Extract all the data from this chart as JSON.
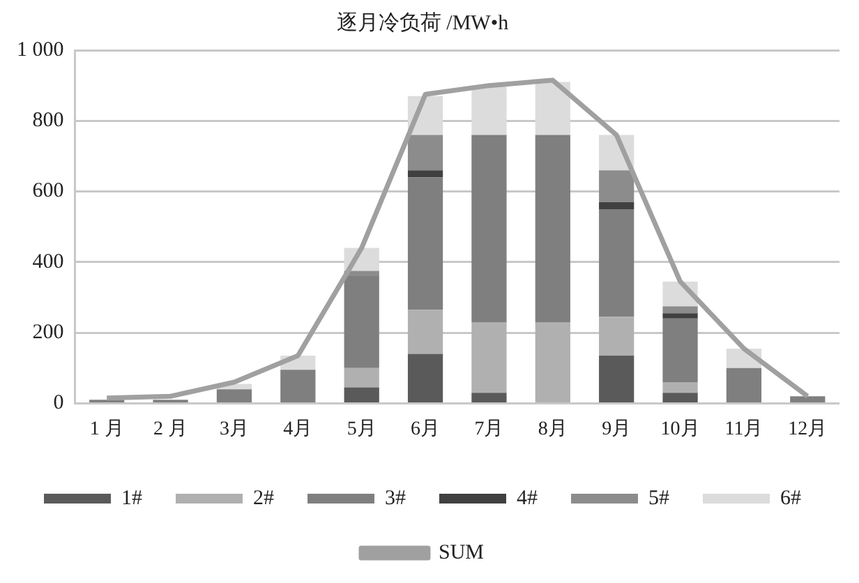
{
  "chart_data": {
    "type": "bar",
    "title": "逐月冷负荷 /MW•h",
    "stacked": true,
    "categories": [
      "1 月",
      "2 月",
      "3月",
      "4月",
      "5月",
      "6月",
      "7月",
      "8月",
      "9月",
      "10月",
      "11月",
      "12月"
    ],
    "series": [
      {
        "name": "1#",
        "color": "#5a5a5a",
        "values": [
          0,
          0,
          0,
          0,
          45,
          140,
          30,
          0,
          135,
          30,
          0,
          0
        ]
      },
      {
        "name": "2#",
        "color": "#b0b0b0",
        "values": [
          0,
          0,
          0,
          0,
          55,
          125,
          200,
          230,
          110,
          30,
          0,
          0
        ]
      },
      {
        "name": "3#",
        "color": "#7f7f7f",
        "values": [
          10,
          10,
          40,
          95,
          260,
          375,
          530,
          530,
          305,
          180,
          100,
          20
        ]
      },
      {
        "name": "4#",
        "color": "#404040",
        "values": [
          0,
          0,
          0,
          0,
          0,
          20,
          0,
          0,
          20,
          15,
          0,
          0
        ]
      },
      {
        "name": "5#",
        "color": "#8c8c8c",
        "values": [
          0,
          0,
          0,
          0,
          15,
          100,
          0,
          0,
          90,
          20,
          0,
          0
        ]
      },
      {
        "name": "6#",
        "color": "#dcdcdc",
        "values": [
          null,
          null,
          15,
          40,
          65,
          110,
          140,
          150,
          100,
          70,
          55,
          0
        ]
      },
      {
        "name": "SUM",
        "type": "line",
        "color": "#a0a0a0",
        "values": [
          15,
          20,
          60,
          135,
          440,
          875,
          900,
          915,
          760,
          345,
          155,
          20
        ]
      }
    ],
    "ylim": [
      0,
      1000
    ],
    "yticks": [
      0,
      200,
      400,
      600,
      800,
      {
        "value": 1000,
        "label": "1 000"
      }
    ],
    "grid": "y",
    "legend": "bottom",
    "marker": "none"
  }
}
